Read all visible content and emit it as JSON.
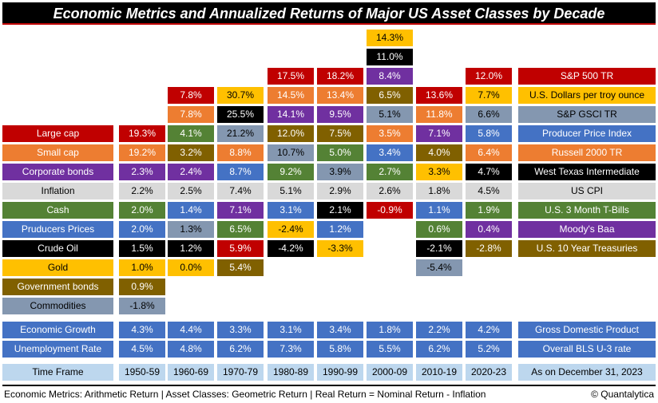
{
  "title": "Economic Metrics and Annualized Returns of Major US Asset Classes by Decade",
  "colors": {
    "sp500": "#c00000",
    "gold": "#ffc000",
    "commodities": "#8497b0",
    "producer_prices": "#4472c4",
    "small_cap": "#ed7d31",
    "crude_oil": "#000000",
    "inflation": "#d9d9d9",
    "cash": "#548235",
    "corporate_bonds": "#7030a0",
    "government_bonds": "#806000",
    "label_blue": "#4472c4",
    "timeframe_bg": "#bdd7ee"
  },
  "row_labels": [
    {
      "key": "large_cap",
      "label": "Large cap",
      "color": "sp500"
    },
    {
      "key": "small_cap",
      "label": "Small cap",
      "color": "small_cap"
    },
    {
      "key": "corporate_bonds",
      "label": "Corporate bonds",
      "color": "corporate_bonds"
    },
    {
      "key": "inflation",
      "label": "Inflation",
      "color": "inflation"
    },
    {
      "key": "cash",
      "label": "Cash",
      "color": "cash"
    },
    {
      "key": "producer_prices",
      "label": "Pruducers Prices",
      "color": "producer_prices"
    },
    {
      "key": "crude_oil",
      "label": "Crude Oil",
      "color": "crude_oil"
    },
    {
      "key": "gold",
      "label": "Gold",
      "color": "gold"
    },
    {
      "key": "government_bonds",
      "label": "Government bonds",
      "color": "government_bonds"
    },
    {
      "key": "commodities",
      "label": "Commodities",
      "color": "commodities"
    }
  ],
  "decades": [
    "1950-59",
    "1960-69",
    "1970-79",
    "1980-89",
    "1990-99",
    "2000-09",
    "2010-19",
    "2020-23"
  ],
  "columns": [
    [
      {
        "row": 5,
        "value": "19.3%",
        "color": "sp500"
      },
      {
        "row": 6,
        "value": "19.2%",
        "color": "small_cap"
      },
      {
        "row": 7,
        "value": "2.3%",
        "color": "corporate_bonds"
      },
      {
        "row": 8,
        "value": "2.2%",
        "color": "inflation"
      },
      {
        "row": 9,
        "value": "2.0%",
        "color": "cash"
      },
      {
        "row": 10,
        "value": "2.0%",
        "color": "producer_prices"
      },
      {
        "row": 11,
        "value": "1.5%",
        "color": "crude_oil"
      },
      {
        "row": 12,
        "value": "1.0%",
        "color": "gold"
      },
      {
        "row": 13,
        "value": "0.9%",
        "color": "government_bonds"
      },
      {
        "row": 14,
        "value": "-1.8%",
        "color": "commodities"
      }
    ],
    [
      {
        "row": 3,
        "value": "7.8%",
        "color": "sp500"
      },
      {
        "row": 4,
        "value": "7.8%",
        "color": "small_cap"
      },
      {
        "row": 5,
        "value": "4.1%",
        "color": "cash"
      },
      {
        "row": 6,
        "value": "3.2%",
        "color": "government_bonds"
      },
      {
        "row": 7,
        "value": "2.4%",
        "color": "corporate_bonds"
      },
      {
        "row": 8,
        "value": "2.5%",
        "color": "inflation"
      },
      {
        "row": 9,
        "value": "1.4%",
        "color": "producer_prices"
      },
      {
        "row": 10,
        "value": "1.3%",
        "color": "commodities"
      },
      {
        "row": 11,
        "value": "1.2%",
        "color": "crude_oil"
      },
      {
        "row": 12,
        "value": "0.0%",
        "color": "gold"
      }
    ],
    [
      {
        "row": 3,
        "value": "30.7%",
        "color": "gold"
      },
      {
        "row": 4,
        "value": "25.5%",
        "color": "crude_oil"
      },
      {
        "row": 5,
        "value": "21.2%",
        "color": "commodities"
      },
      {
        "row": 6,
        "value": "8.8%",
        "color": "small_cap"
      },
      {
        "row": 7,
        "value": "8.7%",
        "color": "producer_prices"
      },
      {
        "row": 8,
        "value": "7.4%",
        "color": "inflation"
      },
      {
        "row": 9,
        "value": "7.1%",
        "color": "corporate_bonds"
      },
      {
        "row": 10,
        "value": "6.5%",
        "color": "cash"
      },
      {
        "row": 11,
        "value": "5.9%",
        "color": "sp500"
      },
      {
        "row": 12,
        "value": "5.4%",
        "color": "government_bonds"
      }
    ],
    [
      {
        "row": 2,
        "value": "17.5%",
        "color": "sp500"
      },
      {
        "row": 3,
        "value": "14.5%",
        "color": "small_cap"
      },
      {
        "row": 4,
        "value": "14.1%",
        "color": "corporate_bonds"
      },
      {
        "row": 5,
        "value": "12.0%",
        "color": "government_bonds"
      },
      {
        "row": 6,
        "value": "10.7%",
        "color": "commodities"
      },
      {
        "row": 7,
        "value": "9.2%",
        "color": "cash"
      },
      {
        "row": 8,
        "value": "5.1%",
        "color": "inflation"
      },
      {
        "row": 9,
        "value": "3.1%",
        "color": "producer_prices"
      },
      {
        "row": 10,
        "value": "-2.4%",
        "color": "gold"
      },
      {
        "row": 11,
        "value": "-4.2%",
        "color": "crude_oil"
      }
    ],
    [
      {
        "row": 2,
        "value": "18.2%",
        "color": "sp500"
      },
      {
        "row": 3,
        "value": "13.4%",
        "color": "small_cap"
      },
      {
        "row": 4,
        "value": "9.5%",
        "color": "corporate_bonds"
      },
      {
        "row": 5,
        "value": "7.5%",
        "color": "government_bonds"
      },
      {
        "row": 6,
        "value": "5.0%",
        "color": "cash"
      },
      {
        "row": 7,
        "value": "3.9%",
        "color": "commodities"
      },
      {
        "row": 8,
        "value": "2.9%",
        "color": "inflation"
      },
      {
        "row": 9,
        "value": "2.1%",
        "color": "crude_oil"
      },
      {
        "row": 10,
        "value": "1.2%",
        "color": "producer_prices"
      },
      {
        "row": 11,
        "value": "-3.3%",
        "color": "gold"
      }
    ],
    [
      {
        "row": 0,
        "value": "14.3%",
        "color": "gold"
      },
      {
        "row": 1,
        "value": "11.0%",
        "color": "crude_oil"
      },
      {
        "row": 2,
        "value": "8.4%",
        "color": "corporate_bonds"
      },
      {
        "row": 3,
        "value": "6.5%",
        "color": "government_bonds"
      },
      {
        "row": 4,
        "value": "5.1%",
        "color": "commodities"
      },
      {
        "row": 5,
        "value": "3.5%",
        "color": "small_cap"
      },
      {
        "row": 6,
        "value": "3.4%",
        "color": "producer_prices"
      },
      {
        "row": 7,
        "value": "2.7%",
        "color": "cash"
      },
      {
        "row": 8,
        "value": "2.6%",
        "color": "inflation"
      },
      {
        "row": 9,
        "value": "-0.9%",
        "color": "sp500"
      }
    ],
    [
      {
        "row": 3,
        "value": "13.6%",
        "color": "sp500"
      },
      {
        "row": 4,
        "value": "11.8%",
        "color": "small_cap"
      },
      {
        "row": 5,
        "value": "7.1%",
        "color": "corporate_bonds"
      },
      {
        "row": 6,
        "value": "4.0%",
        "color": "government_bonds"
      },
      {
        "row": 7,
        "value": "3.3%",
        "color": "gold"
      },
      {
        "row": 8,
        "value": "1.8%",
        "color": "inflation"
      },
      {
        "row": 9,
        "value": "1.1%",
        "color": "producer_prices"
      },
      {
        "row": 10,
        "value": "0.6%",
        "color": "cash"
      },
      {
        "row": 11,
        "value": "-2.1%",
        "color": "crude_oil"
      },
      {
        "row": 12,
        "value": "-5.4%",
        "color": "commodities"
      }
    ],
    [
      {
        "row": 2,
        "value": "12.0%",
        "color": "sp500"
      },
      {
        "row": 3,
        "value": "7.7%",
        "color": "gold"
      },
      {
        "row": 4,
        "value": "6.6%",
        "color": "commodities"
      },
      {
        "row": 5,
        "value": "5.8%",
        "color": "producer_prices"
      },
      {
        "row": 6,
        "value": "6.4%",
        "color": "small_cap"
      },
      {
        "row": 7,
        "value": "4.7%",
        "color": "crude_oil"
      },
      {
        "row": 8,
        "value": "4.5%",
        "color": "inflation"
      },
      {
        "row": 9,
        "value": "1.9%",
        "color": "cash"
      },
      {
        "row": 10,
        "value": "0.4%",
        "color": "corporate_bonds"
      },
      {
        "row": 11,
        "value": "-2.8%",
        "color": "government_bonds"
      }
    ]
  ],
  "legend": [
    {
      "row": 2,
      "label": "S&P 500 TR",
      "color": "sp500"
    },
    {
      "row": 3,
      "label": "U.S. Dollars per troy ounce",
      "color": "gold"
    },
    {
      "row": 4,
      "label": "S&P GSCI TR",
      "color": "commodities"
    },
    {
      "row": 5,
      "label": "Producer Price Index",
      "color": "producer_prices"
    },
    {
      "row": 6,
      "label": "Russell 2000 TR",
      "color": "small_cap"
    },
    {
      "row": 7,
      "label": "West Texas Intermediate",
      "color": "crude_oil"
    },
    {
      "row": 8,
      "label": "US CPI",
      "color": "inflation"
    },
    {
      "row": 9,
      "label": "U.S. 3 Month T-Bills",
      "color": "cash"
    },
    {
      "row": 10,
      "label": "Moody's Baa",
      "color": "corporate_bonds"
    },
    {
      "row": 11,
      "label": "U.S. 10 Year Treasuries",
      "color": "government_bonds"
    }
  ],
  "economic_growth": {
    "label": "Economic Growth",
    "values": [
      "4.3%",
      "4.4%",
      "3.3%",
      "3.1%",
      "3.4%",
      "1.8%",
      "2.2%",
      "4.2%"
    ],
    "source": "Gross Domestic Product"
  },
  "unemployment": {
    "label": "Unemployment Rate",
    "values": [
      "4.5%",
      "4.8%",
      "6.2%",
      "7.3%",
      "5.8%",
      "5.5%",
      "6.2%",
      "5.2%"
    ],
    "source": "Overall BLS U-3 rate"
  },
  "time_frame": {
    "label": "Time Frame",
    "as_of": "As on December 31, 2023"
  },
  "footer": {
    "left": "Economic Metrics: Arithmetic Return | Asset Classes: Geometric Return | Real Return = Nominal Return - Inflation",
    "right": "© Quantalytica"
  }
}
